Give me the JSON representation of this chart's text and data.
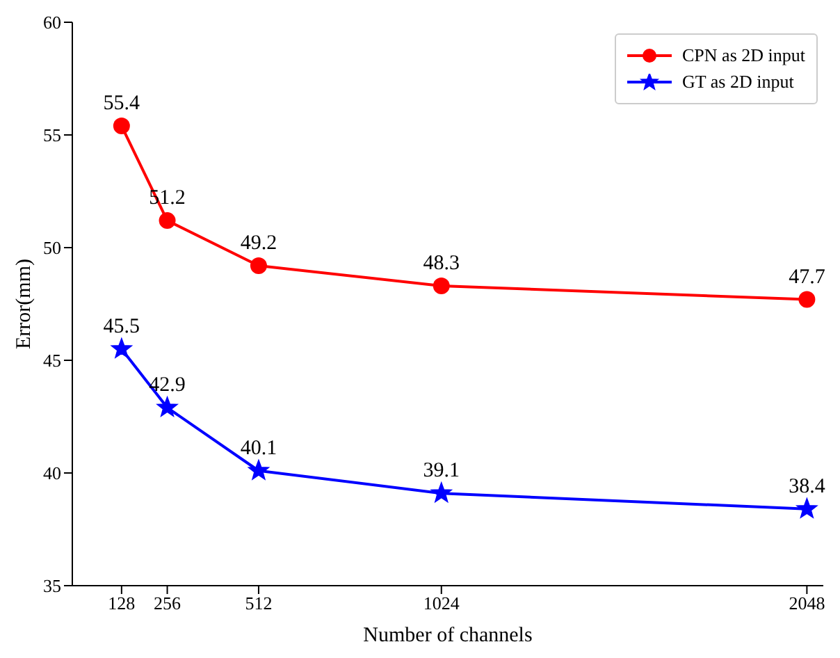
{
  "chart_data": {
    "type": "line",
    "xlabel": "Number of channels",
    "ylabel": "Error(mm)",
    "x": [
      128,
      256,
      512,
      1024,
      2048
    ],
    "series": [
      {
        "name": "CPN as 2D input",
        "color": "#ff0000",
        "marker": "circle",
        "values": [
          55.4,
          51.2,
          49.2,
          48.3,
          47.7
        ]
      },
      {
        "name": "GT as 2D input",
        "color": "#0000ff",
        "marker": "star",
        "values": [
          45.5,
          42.9,
          40.1,
          39.1,
          38.4
        ]
      }
    ],
    "xlim": [
      -10,
      2094
    ],
    "xticks": [
      128,
      256,
      512,
      1024,
      2048
    ],
    "ylim": [
      35,
      60
    ],
    "yticks": [
      35,
      40,
      45,
      50,
      55,
      60
    ],
    "data_labels": true,
    "legend": "top right",
    "grid": false,
    "line_style": "solid"
  }
}
